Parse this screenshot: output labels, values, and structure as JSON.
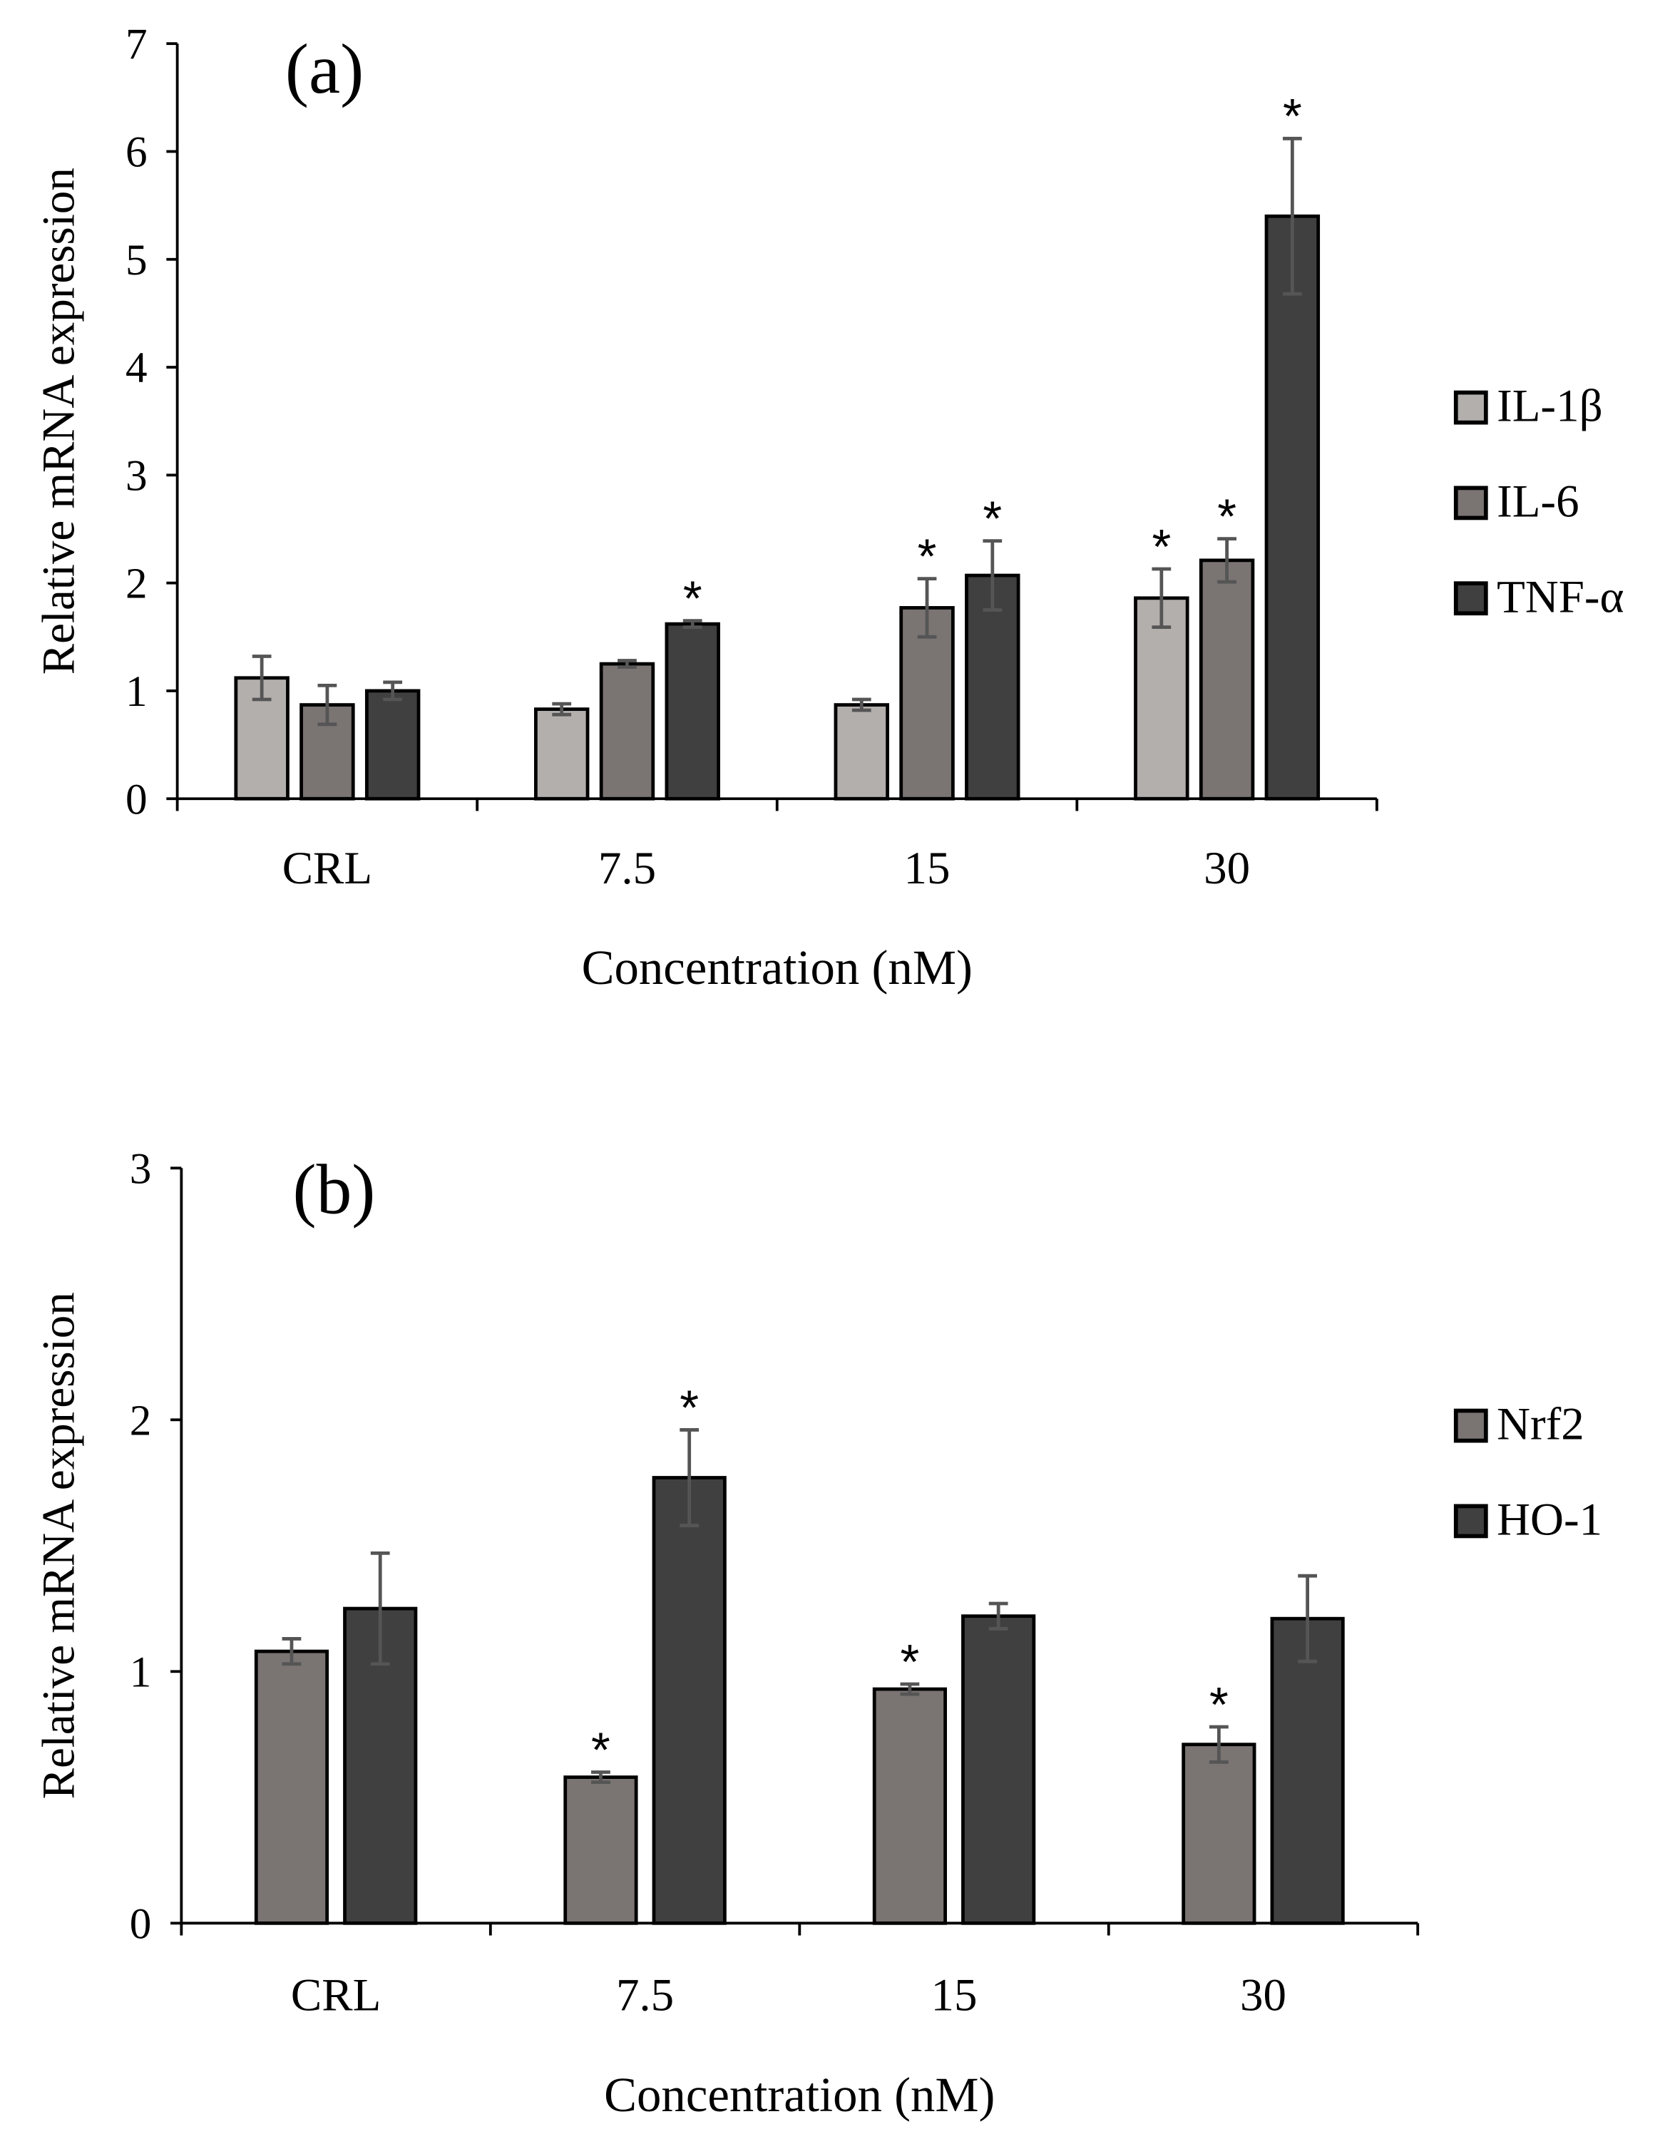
{
  "chart_data": [
    {
      "type": "bar",
      "panel_label": "(a)",
      "xlabel": "Concentration (nM)",
      "ylabel": "Relative mRNA expression",
      "ylim": [
        0,
        7
      ],
      "yticks": [
        "0",
        "1",
        "2",
        "3",
        "4",
        "5",
        "6",
        "7"
      ],
      "categories": [
        "CRL",
        "7.5",
        "15",
        "30"
      ],
      "legend_position": "right",
      "significance_marker": "*",
      "series": [
        {
          "name": "IL-1β",
          "color": "#b3afad",
          "values": [
            1.12,
            0.83,
            0.87,
            1.86
          ],
          "errors": [
            0.2,
            0.05,
            0.05,
            0.27
          ],
          "significant": [
            false,
            false,
            false,
            true
          ]
        },
        {
          "name": "IL-6",
          "color": "#7a7473",
          "values": [
            0.87,
            1.25,
            1.77,
            2.21
          ],
          "errors": [
            0.18,
            0.03,
            0.27,
            0.2
          ],
          "significant": [
            false,
            false,
            true,
            true
          ]
        },
        {
          "name": "TNF-α",
          "color": "#404040",
          "values": [
            1.0,
            1.62,
            2.07,
            5.4
          ],
          "errors": [
            0.08,
            0.03,
            0.32,
            0.72
          ],
          "significant": [
            false,
            true,
            true,
            true
          ]
        }
      ]
    },
    {
      "type": "bar",
      "panel_label": "(b)",
      "xlabel": "Concentration (nM)",
      "ylabel": "Relative mRNA expression",
      "ylim": [
        0,
        3
      ],
      "yticks": [
        "0",
        "1",
        "2",
        "3"
      ],
      "categories": [
        "CRL",
        "7.5",
        "15",
        "30"
      ],
      "legend_position": "right",
      "significance_marker": "*",
      "series": [
        {
          "name": "Nrf2",
          "color": "#7a7473",
          "values": [
            1.08,
            0.58,
            0.93,
            0.71
          ],
          "errors": [
            0.05,
            0.02,
            0.02,
            0.07
          ],
          "significant": [
            false,
            true,
            true,
            true
          ]
        },
        {
          "name": "HO-1",
          "color": "#404040",
          "values": [
            1.25,
            1.77,
            1.22,
            1.21
          ],
          "errors": [
            0.22,
            0.19,
            0.05,
            0.17
          ],
          "significant": [
            false,
            true,
            false,
            false
          ]
        }
      ]
    }
  ]
}
